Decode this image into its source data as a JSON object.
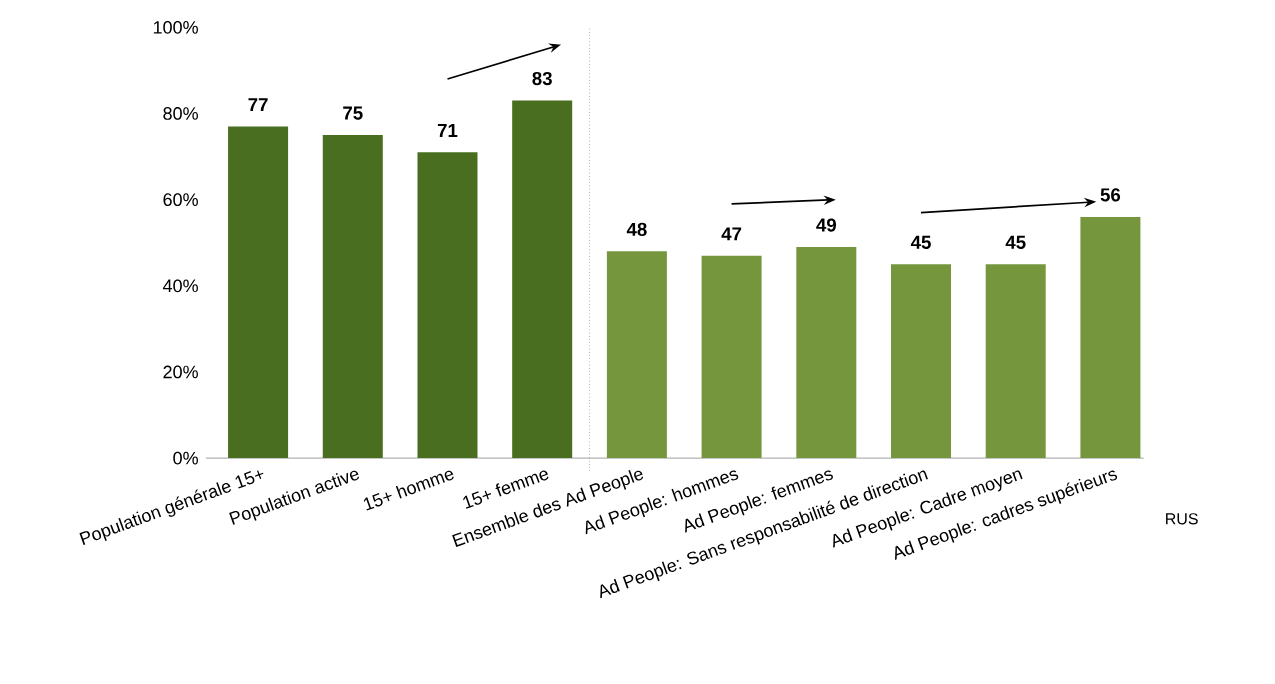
{
  "chart_data": {
    "type": "bar",
    "categories": [
      "Population générale 15+",
      "Population active",
      "15+ homme",
      "15+ femme",
      "Ensemble des Ad People",
      "Ad People: hommes",
      "Ad People: femmes",
      "Ad People: Sans responsabilité de direction",
      "Ad People: Cadre moyen",
      "Ad People: cadres supérieurs"
    ],
    "values": [
      77,
      75,
      71,
      83,
      48,
      47,
      49,
      45,
      45,
      56
    ],
    "colors": [
      "#4a6e1f",
      "#4a6e1f",
      "#4a6e1f",
      "#4a6e1f",
      "#76963d",
      "#76963d",
      "#76963d",
      "#76963d",
      "#76963d",
      "#76963d"
    ],
    "ylim": [
      0,
      100
    ],
    "yticks": [
      {
        "value": 0,
        "label": "0%"
      },
      {
        "value": 20,
        "label": "20%"
      },
      {
        "value": 40,
        "label": "40%"
      },
      {
        "value": 60,
        "label": "60%"
      },
      {
        "value": 80,
        "label": "80%"
      },
      {
        "value": 100,
        "label": "100%"
      }
    ],
    "data_labels": true,
    "annotations": [
      "RUS"
    ]
  }
}
